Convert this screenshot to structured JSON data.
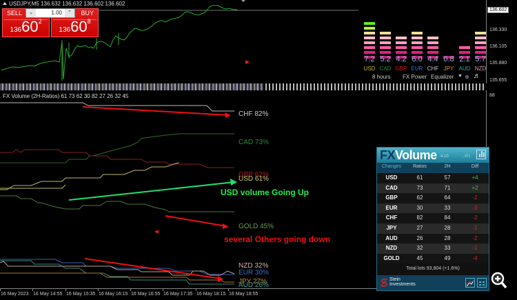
{
  "price_chart": {
    "symbol_line": "USDJPY,M5  136.632 136.632 136.602 136.602",
    "trade_panel": {
      "sell_label": "SELL",
      "buy_label": "BUY",
      "lot_value": "1.00",
      "sell_price": {
        "prefix": "136",
        "main": "60",
        "sup": "2"
      },
      "buy_price": {
        "prefix": "136",
        "main": "60",
        "sup": "8"
      }
    },
    "price_axis": {
      "current": "136.602",
      "labels": [
        "136.330",
        "136.105",
        "135.880",
        "135.655"
      ]
    }
  },
  "equalizer": {
    "currencies": [
      {
        "code": "USD",
        "value": "7.2",
        "color": "#c8b43a",
        "segments": 8
      },
      {
        "code": "CAD",
        "value": "5.2",
        "color": "#2e8b2e",
        "segments": 6
      },
      {
        "code": "GBP",
        "value": "4.2",
        "color": "#d42020",
        "segments": 5
      },
      {
        "code": "EUR",
        "value": "6.0",
        "color": "#3a70c8",
        "segments": 6
      },
      {
        "code": "CHF",
        "value": "4.4",
        "color": "#cccccc",
        "segments": 5
      },
      {
        "code": "JPY",
        "value": "0.8",
        "color": "#d98a2a",
        "segments": 1
      },
      {
        "code": "AUD",
        "value": "2.1",
        "color": "#3aa8a0",
        "segments": 3
      },
      {
        "code": "NZD",
        "value": "5.7",
        "color": "#d9a0b0",
        "segments": 6
      }
    ],
    "segment_colors": [
      "#c0207a",
      "#e0208a",
      "#ff5aa8",
      "#ffa0c0",
      "#ffc0c8",
      "#f0e090",
      "#b0f040",
      "#60f020",
      "#30ff00"
    ],
    "footer": {
      "period": "8 hours",
      "mode": "FX Power",
      "view": "Equalizer"
    }
  },
  "indicator": {
    "title": "FX Volume (2H-Ratios) 61 73 62 30 82 27 26 32 45",
    "axis_top": "88",
    "labels": [
      {
        "text": "CHF 82%",
        "color": "#cccccc"
      },
      {
        "text": "CAD 73%",
        "color": "#2e8b2e"
      },
      {
        "text": "GBP 62%",
        "color": "#b02020"
      },
      {
        "text": "USD 61%",
        "color": "#d8c870"
      },
      {
        "text": "GOLD 45%",
        "color": "#6a9a50"
      },
      {
        "text": "NZD 32%",
        "color": "#d9b0b0"
      },
      {
        "text": "EUR 30%",
        "color": "#3a70c8"
      },
      {
        "text": "JPY 27%",
        "color": "#c8902a"
      },
      {
        "text": "AUD 26%",
        "color": "#3aa8a0"
      }
    ],
    "annotations": {
      "up": "USD volume Going Up",
      "down": "several Others going down"
    }
  },
  "time_axis": {
    "labels": [
      "16 May 2023",
      "16 May 14:55",
      "16 May 15:35",
      "16 May 16:15",
      "16 May 16:55",
      "16 May 17:35",
      "16 May 18:15",
      "16 May 18:55"
    ]
  },
  "fx_volume_panel": {
    "logo_fx": "FX",
    "logo_volume": "Volume",
    "version": "4.10",
    "columns": [
      "Changes",
      "Ratios",
      "2H",
      "Diff"
    ],
    "rows": [
      {
        "currency": "USD",
        "ratio": "61",
        "h2": "57",
        "diff": "+4"
      },
      {
        "currency": "CAD",
        "ratio": "73",
        "h2": "71",
        "diff": "+2"
      },
      {
        "currency": "GBP",
        "ratio": "62",
        "h2": "64",
        "diff": "-2"
      },
      {
        "currency": "EUR",
        "ratio": "30",
        "h2": "33",
        "diff": "-3"
      },
      {
        "currency": "CHF",
        "ratio": "82",
        "h2": "84",
        "diff": "-2"
      },
      {
        "currency": "JPY",
        "ratio": "27",
        "h2": "28",
        "diff": "-1"
      },
      {
        "currency": "AUD",
        "ratio": "26",
        "h2": "28",
        "diff": "-2"
      },
      {
        "currency": "NZD",
        "ratio": "32",
        "h2": "33",
        "diff": "-1"
      },
      {
        "currency": "GOLD",
        "ratio": "45",
        "h2": "49",
        "diff": "-4"
      }
    ],
    "total": "Total lots 93,804 (+1.6%)",
    "brand_line1": "Stein",
    "brand_line2": "Investments",
    "colors": {
      "positive": "#30d030",
      "negative": "#e02020"
    }
  }
}
